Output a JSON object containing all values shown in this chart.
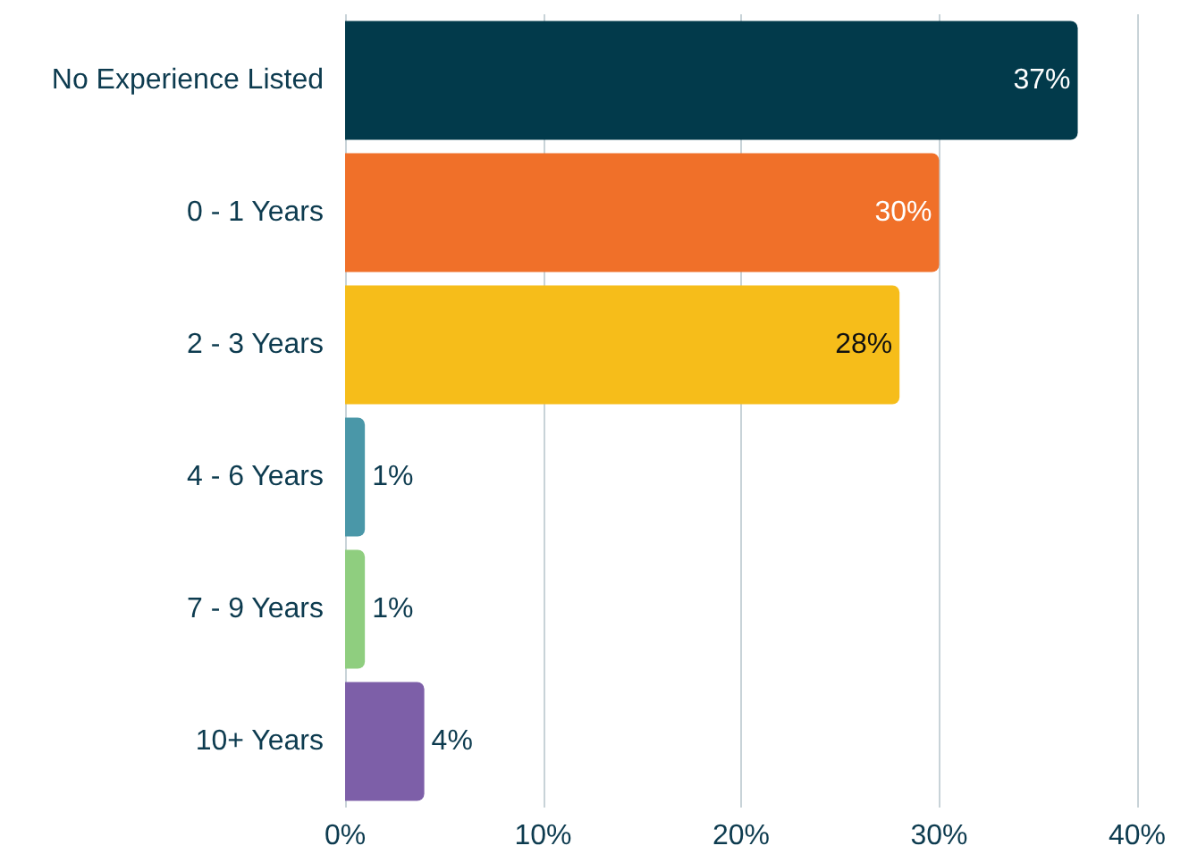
{
  "chart_data": {
    "type": "bar",
    "orientation": "horizontal",
    "categories": [
      "No Experience Listed",
      "0 - 1 Years",
      "2 - 3 Years",
      "4 - 6 Years",
      "7 - 9 Years",
      "10+ Years"
    ],
    "values": [
      37,
      30,
      28,
      1,
      1,
      4
    ],
    "value_labels": [
      "37%",
      "30%",
      "28%",
      "1%",
      "1%",
      "4%"
    ],
    "colors": [
      "#023a4b",
      "#f07029",
      "#f6bd1a",
      "#4a97a8",
      "#8fce7f",
      "#7d5fa8"
    ],
    "xlim": [
      0,
      40
    ],
    "xticks": [
      {
        "value": 0,
        "label": "0%"
      },
      {
        "value": 10,
        "label": "10%"
      },
      {
        "value": 20,
        "label": "20%"
      },
      {
        "value": 30,
        "label": "30%"
      },
      {
        "value": 40,
        "label": "40%"
      }
    ],
    "grid": "x"
  }
}
